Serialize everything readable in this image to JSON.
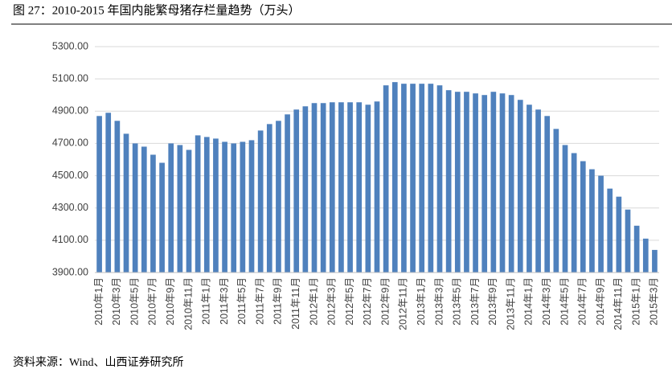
{
  "chart_data": {
    "type": "bar",
    "title": "图 27：2010-2015 年国内能繁母猪存栏量趋势（万头）",
    "source": "资料来源：Wind、山西证券研究所",
    "categories": [
      "2010年1月",
      null,
      "2010年3月",
      null,
      "2010年5月",
      null,
      "2010年7月",
      null,
      "2010年9月",
      null,
      "2010年11月",
      null,
      "2011年1月",
      null,
      "2011年3月",
      null,
      "2011年5月",
      null,
      "2011年7月",
      null,
      "2011年9月",
      null,
      "2011年11月",
      null,
      "2012年1月",
      null,
      "2012年3月",
      null,
      "2012年5月",
      null,
      "2012年7月",
      null,
      "2012年9月",
      null,
      "2012年11月",
      null,
      "2013年1月",
      null,
      "2013年3月",
      null,
      "2013年5月",
      null,
      "2013年7月",
      null,
      "2013年9月",
      null,
      "2013年11月",
      null,
      "2014年1月",
      null,
      "2014年3月",
      null,
      "2014年5月",
      null,
      "2014年7月",
      null,
      "2014年9月",
      null,
      "2014年11月",
      null,
      "2015年1月",
      null,
      "2015年3月"
    ],
    "values": [
      4870,
      4890,
      4840,
      4760,
      4700,
      4680,
      4630,
      4580,
      4700,
      4690,
      4660,
      4750,
      4740,
      4730,
      4710,
      4700,
      4710,
      4720,
      4780,
      4820,
      4840,
      4880,
      4910,
      4930,
      4950,
      4950,
      4955,
      4955,
      4955,
      4955,
      4940,
      4960,
      5060,
      5080,
      5070,
      5070,
      5070,
      5070,
      5060,
      5030,
      5020,
      5020,
      5010,
      5000,
      5020,
      5010,
      5000,
      4970,
      4940,
      4910,
      4870,
      4790,
      4690,
      4640,
      4590,
      4540,
      4500,
      4420,
      4370,
      4290,
      4190,
      4110,
      4040
    ],
    "color": "#4f81bd",
    "ylim": [
      3900,
      5300
    ],
    "yticks": [
      {
        "value": 3900,
        "label": "3900.00"
      },
      {
        "value": 4100,
        "label": "4100.00"
      },
      {
        "value": 4300,
        "label": "4300.00"
      },
      {
        "value": 4500,
        "label": "4500.00"
      },
      {
        "value": 4700,
        "label": "4700.00"
      },
      {
        "value": 4900,
        "label": "4900.00"
      },
      {
        "value": 5100,
        "label": "5100.00"
      },
      {
        "value": 5300,
        "label": "5300.00"
      }
    ],
    "grid": true
  }
}
